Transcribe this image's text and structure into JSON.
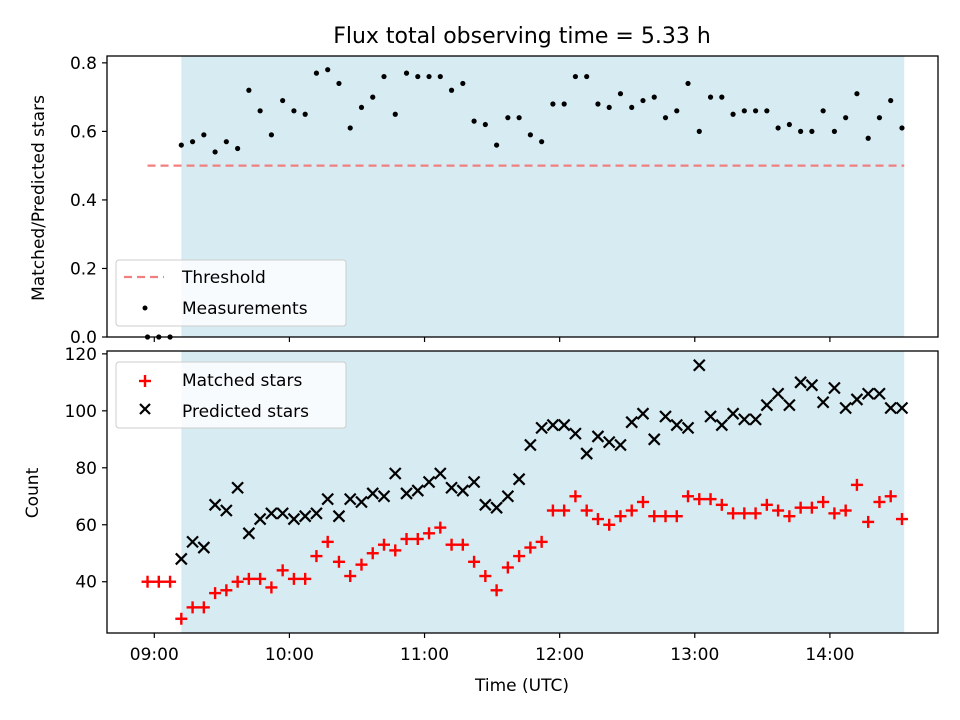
{
  "chart_data": [
    {
      "type": "scatter",
      "title": "Flux total observing time = 5.33 h",
      "ylabel": "Matched/Predicted stars",
      "xlim": [
        "08:39",
        "14:48"
      ],
      "ylim": [
        0,
        0.82
      ],
      "yticks": [
        "0.0",
        "0.2",
        "0.4",
        "0.6",
        "0.8"
      ],
      "grid": false,
      "legend_position": "lower-left",
      "shaded_interval": {
        "start": "09:12",
        "end": "14:33",
        "color": "#add8e6"
      },
      "threshold": {
        "name": "Threshold",
        "value": 0.5,
        "x_start": "08:57",
        "x_end": "14:33",
        "color": "#f08080"
      },
      "series": [
        {
          "name": "Measurements",
          "color": "#000000",
          "x": [
            "08:57",
            "09:02",
            "09:07",
            "09:12",
            "09:17",
            "09:22",
            "09:27",
            "09:32",
            "09:37",
            "09:42",
            "09:47",
            "09:52",
            "09:57",
            "10:02",
            "10:07",
            "10:12",
            "10:17",
            "10:22",
            "10:27",
            "10:32",
            "10:37",
            "10:42",
            "10:47",
            "10:52",
            "10:57",
            "11:02",
            "11:07",
            "11:12",
            "11:17",
            "11:22",
            "11:27",
            "11:32",
            "11:37",
            "11:42",
            "11:47",
            "11:52",
            "11:57",
            "12:02",
            "12:07",
            "12:12",
            "12:17",
            "12:22",
            "12:27",
            "12:32",
            "12:37",
            "12:42",
            "12:47",
            "12:52",
            "12:57",
            "13:02",
            "13:07",
            "13:12",
            "13:17",
            "13:22",
            "13:27",
            "13:32",
            "13:37",
            "13:42",
            "13:47",
            "13:52",
            "13:57",
            "14:02",
            "14:07",
            "14:12",
            "14:17",
            "14:22",
            "14:27",
            "14:32"
          ],
          "y": [
            0.0,
            0.0,
            0.0,
            0.56,
            0.57,
            0.59,
            0.54,
            0.57,
            0.55,
            0.72,
            0.66,
            0.59,
            0.69,
            0.66,
            0.65,
            0.77,
            0.78,
            0.74,
            0.61,
            0.67,
            0.7,
            0.76,
            0.65,
            0.77,
            0.76,
            0.76,
            0.76,
            0.72,
            0.74,
            0.63,
            0.62,
            0.56,
            0.64,
            0.64,
            0.59,
            0.57,
            0.68,
            0.68,
            0.76,
            0.76,
            0.68,
            0.67,
            0.71,
            0.67,
            0.69,
            0.7,
            0.64,
            0.66,
            0.74,
            0.6,
            0.7,
            0.7,
            0.65,
            0.66,
            0.66,
            0.66,
            0.61,
            0.62,
            0.6,
            0.6,
            0.66,
            0.6,
            0.64,
            0.71,
            0.58,
            0.64,
            0.69,
            0.61
          ]
        }
      ]
    },
    {
      "type": "scatter",
      "xlabel": "Time (UTC)",
      "ylabel": "Count",
      "xlim": [
        "08:39",
        "14:48"
      ],
      "ylim": [
        22,
        121
      ],
      "xticks": [
        "09:00",
        "10:00",
        "11:00",
        "12:00",
        "13:00",
        "14:00"
      ],
      "yticks": [
        "40",
        "60",
        "80",
        "100",
        "120"
      ],
      "grid": false,
      "legend_position": "upper-left",
      "shaded_interval": {
        "start": "09:12",
        "end": "14:33",
        "color": "#add8e6"
      },
      "series": [
        {
          "name": "Matched stars",
          "marker": "+",
          "color": "#ff0000",
          "x": [
            "08:57",
            "09:02",
            "09:07",
            "09:12",
            "09:17",
            "09:22",
            "09:27",
            "09:32",
            "09:37",
            "09:42",
            "09:47",
            "09:52",
            "09:57",
            "10:02",
            "10:07",
            "10:12",
            "10:17",
            "10:22",
            "10:27",
            "10:32",
            "10:37",
            "10:42",
            "10:47",
            "10:52",
            "10:57",
            "11:02",
            "11:07",
            "11:12",
            "11:17",
            "11:22",
            "11:27",
            "11:32",
            "11:37",
            "11:42",
            "11:47",
            "11:52",
            "11:57",
            "12:02",
            "12:07",
            "12:12",
            "12:17",
            "12:22",
            "12:27",
            "12:32",
            "12:37",
            "12:42",
            "12:47",
            "12:52",
            "12:57",
            "13:02",
            "13:07",
            "13:12",
            "13:17",
            "13:22",
            "13:27",
            "13:32",
            "13:37",
            "13:42",
            "13:47",
            "13:52",
            "13:57",
            "14:02",
            "14:07",
            "14:12",
            "14:17",
            "14:22",
            "14:27",
            "14:32"
          ],
          "y": [
            40,
            40,
            40,
            27,
            31,
            31,
            36,
            37,
            40,
            41,
            41,
            38,
            44,
            41,
            41,
            49,
            54,
            47,
            42,
            46,
            50,
            53,
            51,
            55,
            55,
            57,
            59,
            53,
            53,
            47,
            42,
            37,
            45,
            49,
            52,
            54,
            65,
            65,
            70,
            65,
            62,
            60,
            63,
            65,
            68,
            63,
            63,
            63,
            70,
            69,
            69,
            67,
            64,
            64,
            64,
            67,
            65,
            63,
            66,
            66,
            68,
            64,
            65,
            74,
            61,
            68,
            70,
            62
          ]
        },
        {
          "name": "Predicted stars",
          "marker": "x",
          "color": "#000000",
          "x": [
            "09:12",
            "09:17",
            "09:22",
            "09:27",
            "09:32",
            "09:37",
            "09:42",
            "09:47",
            "09:52",
            "09:57",
            "10:02",
            "10:07",
            "10:12",
            "10:17",
            "10:22",
            "10:27",
            "10:32",
            "10:37",
            "10:42",
            "10:47",
            "10:52",
            "10:57",
            "11:02",
            "11:07",
            "11:12",
            "11:17",
            "11:22",
            "11:27",
            "11:32",
            "11:37",
            "11:42",
            "11:47",
            "11:52",
            "11:57",
            "12:02",
            "12:07",
            "12:12",
            "12:17",
            "12:22",
            "12:27",
            "12:32",
            "12:37",
            "12:42",
            "12:47",
            "12:52",
            "12:57",
            "13:02",
            "13:07",
            "13:12",
            "13:17",
            "13:22",
            "13:27",
            "13:32",
            "13:37",
            "13:42",
            "13:47",
            "13:52",
            "13:57",
            "14:02",
            "14:07",
            "14:12",
            "14:17",
            "14:22",
            "14:27",
            "14:32"
          ],
          "y": [
            48,
            54,
            52,
            67,
            65,
            73,
            57,
            62,
            64,
            64,
            62,
            63,
            64,
            69,
            63,
            69,
            68,
            71,
            70,
            78,
            71,
            72,
            75,
            78,
            73,
            72,
            75,
            67,
            66,
            70,
            76,
            88,
            94,
            95,
            95,
            92,
            85,
            91,
            89,
            88,
            96,
            99,
            90,
            98,
            95,
            94,
            116,
            98,
            95,
            99,
            97,
            97,
            102,
            106,
            102,
            110,
            109,
            103,
            108,
            101,
            104,
            106,
            106,
            101,
            101
          ]
        }
      ]
    }
  ]
}
